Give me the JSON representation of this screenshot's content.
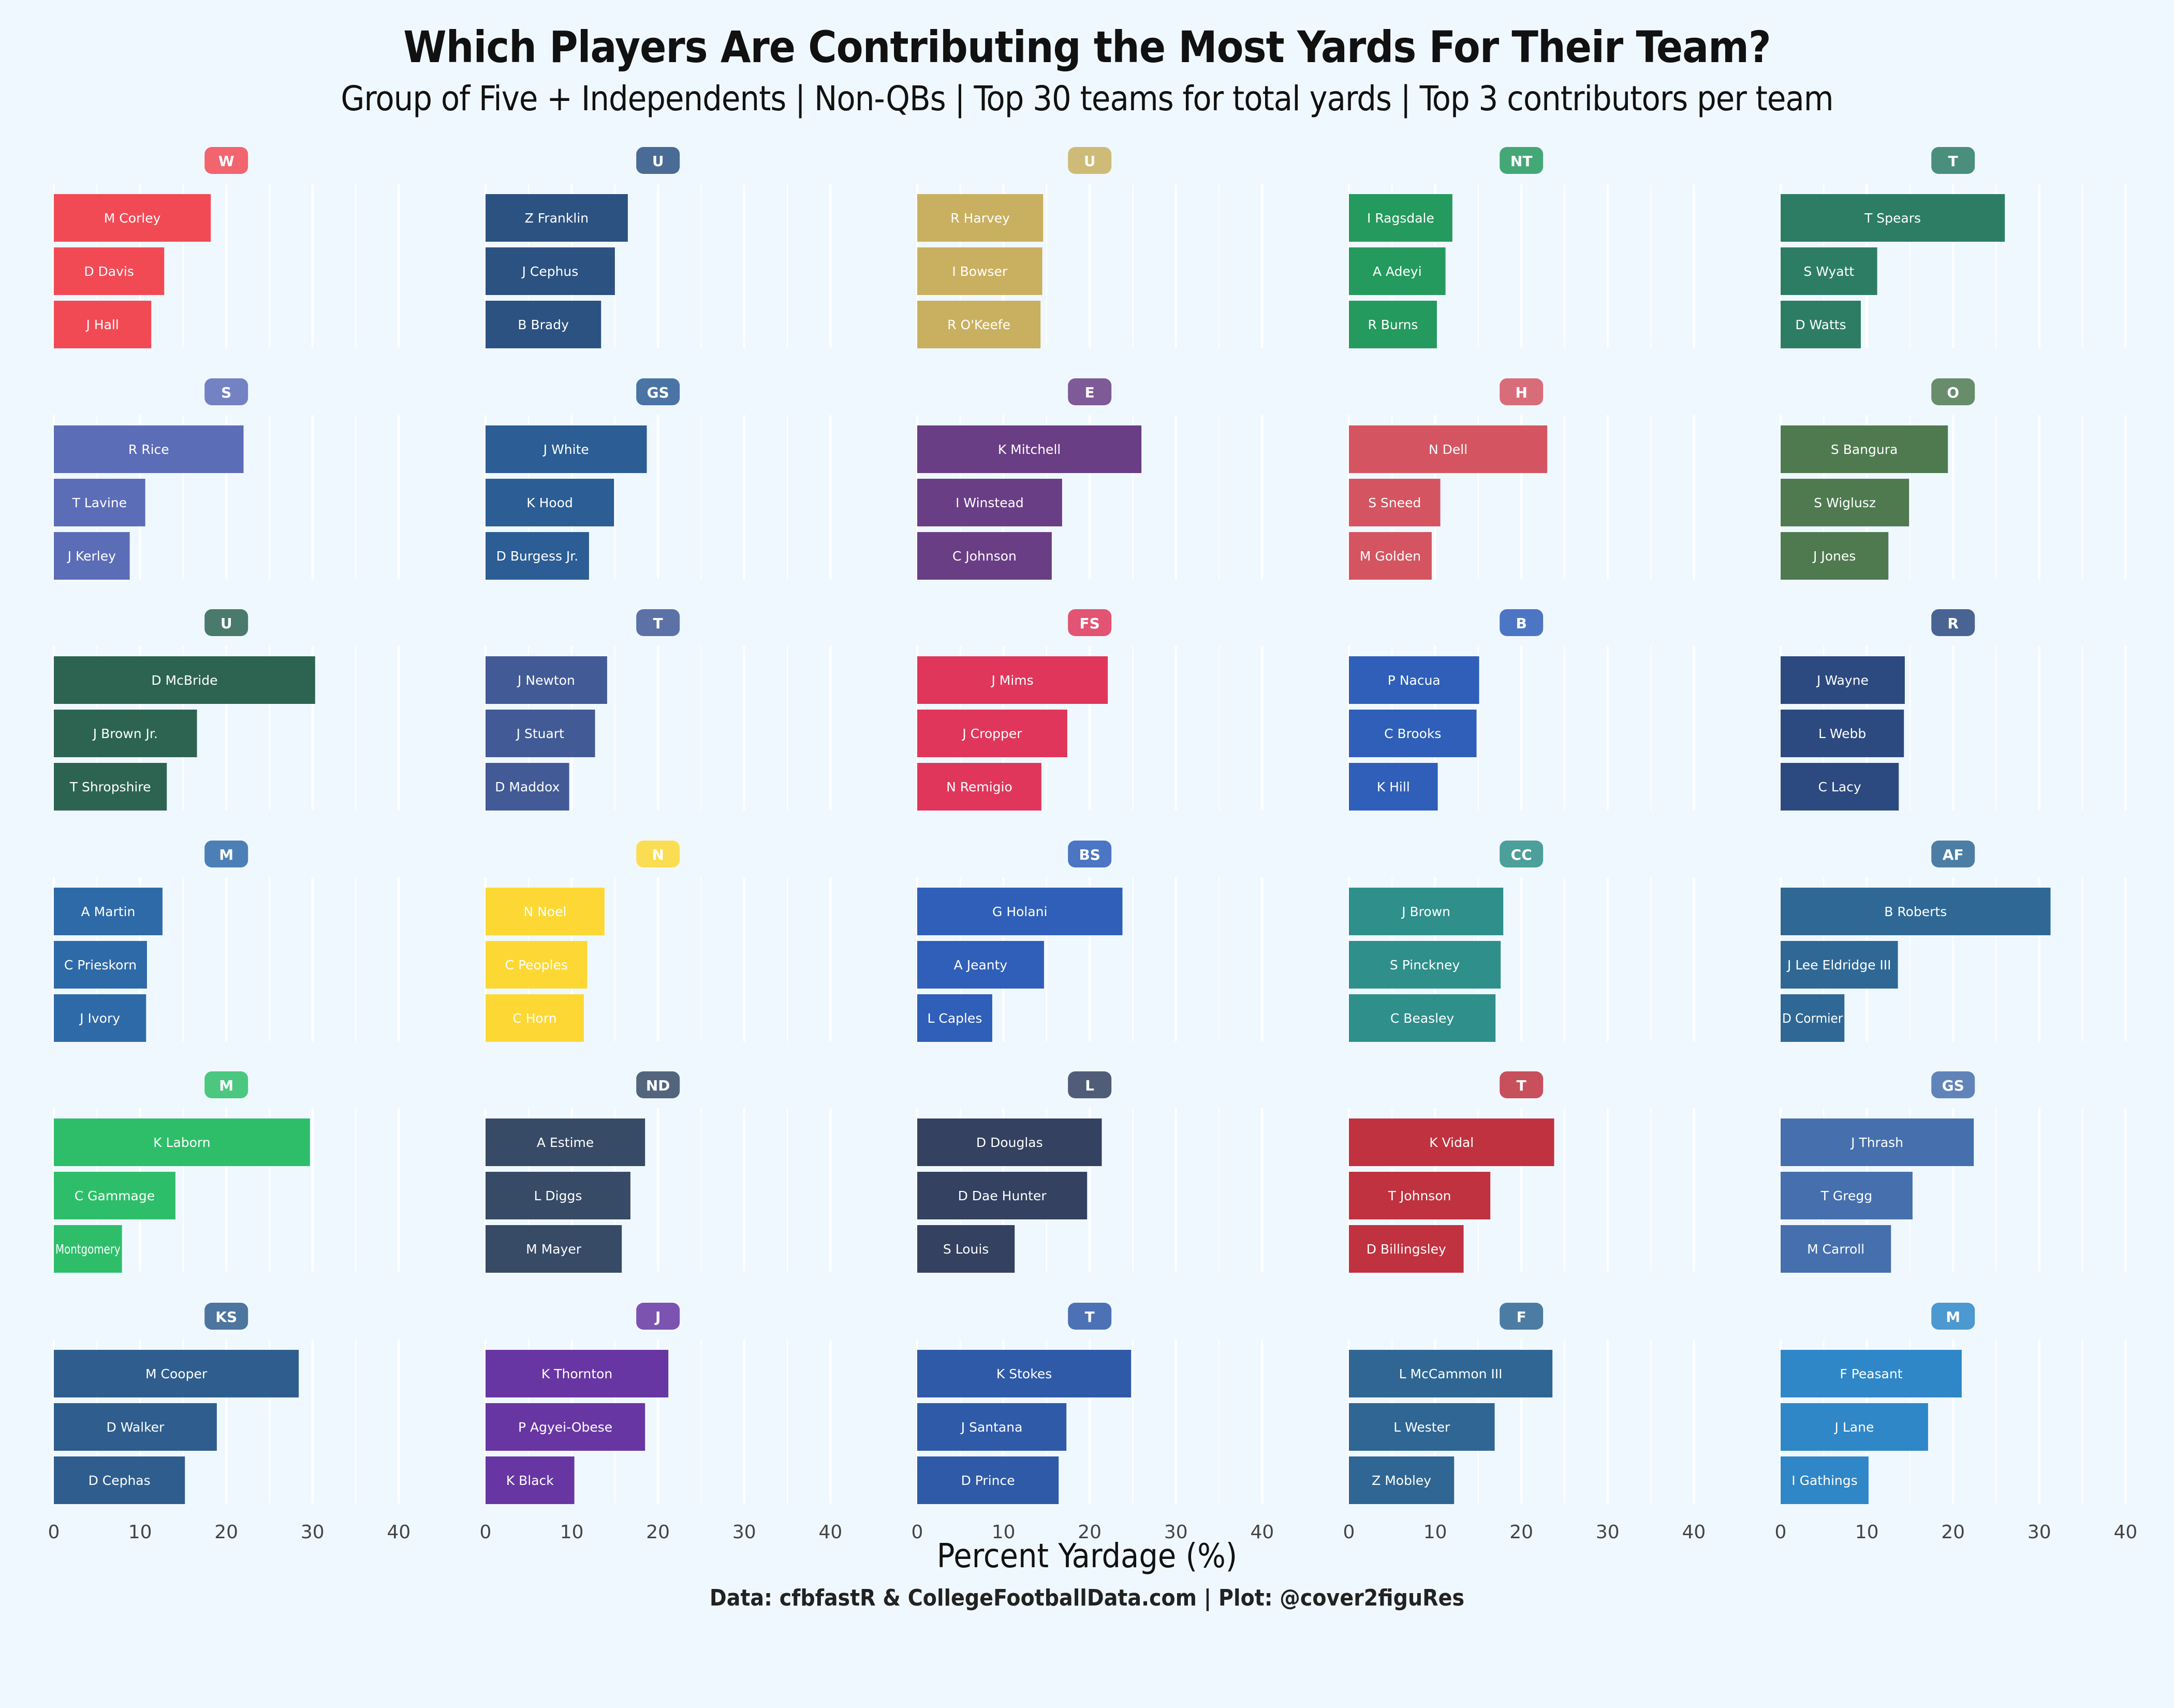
{
  "title": "Which Players Are Contributing the Most Yards For Their Team?",
  "subtitle": "Group of Five + Independents | Non-QBs | Top 30 teams for total yards | Top 3 contributors per team",
  "xlabel": "Percent Yardage (%)",
  "caption": "Data: cfbfastR & CollegeFootballData.com | Plot: @cover2figuRes",
  "chart_data": {
    "type": "bar",
    "orientation": "horizontal",
    "layout": "small multiples, 6 rows x 5 columns",
    "xlim": [
      0,
      40
    ],
    "xticks": [
      0,
      10,
      20,
      30,
      40
    ],
    "grid": true,
    "teams": [
      {
        "logo": "WKU",
        "logo_icon": "wku-logo-icon",
        "color": "#f24a55",
        "players": [
          "M Corley",
          "D Davis",
          "J Hall"
        ],
        "values": [
          18.2,
          12.8,
          11.3
        ]
      },
      {
        "logo": "UTSA",
        "logo_icon": "utsa-logo-icon",
        "color": "#2c5282",
        "players": [
          "Z Franklin",
          "J Cephus",
          "B Brady"
        ],
        "values": [
          16.5,
          15.0,
          13.4
        ]
      },
      {
        "logo": "UCF",
        "logo_icon": "ucf-logo-icon",
        "color": "#c9b060",
        "players": [
          "R Harvey",
          "I Bowser",
          "R O'Keefe"
        ],
        "values": [
          14.6,
          14.5,
          14.3
        ]
      },
      {
        "logo": "North Texas",
        "logo_icon": "north-texas-logo-icon",
        "color": "#259a5e",
        "players": [
          "I Ragsdale",
          "A Adeyi",
          "R Burns"
        ],
        "values": [
          12.0,
          11.2,
          10.2
        ]
      },
      {
        "logo": "Tulane",
        "logo_icon": "tulane-logo-icon",
        "color": "#2d7d65",
        "players": [
          "T Spears",
          "S Wyatt",
          "D Watts"
        ],
        "values": [
          26.0,
          11.2,
          9.3
        ]
      },
      {
        "logo": "SMU",
        "logo_icon": "smu-logo-icon",
        "color": "#5c6db8",
        "players": [
          "R Rice",
          "T Lavine",
          "J Kerley"
        ],
        "values": [
          22.0,
          10.6,
          8.8
        ]
      },
      {
        "logo": "Georgia Southern",
        "logo_icon": "georgia-southern-logo-icon",
        "color": "#2c5d94",
        "players": [
          "J White",
          "K Hood",
          "D Burgess Jr."
        ],
        "values": [
          18.7,
          14.9,
          12.0
        ]
      },
      {
        "logo": "ECU",
        "logo_icon": "ecu-logo-icon",
        "color": "#6a3e85",
        "players": [
          "K Mitchell",
          "I Winstead",
          "C Johnson"
        ],
        "values": [
          26.0,
          16.8,
          15.6
        ]
      },
      {
        "logo": "Houston",
        "logo_icon": "houston-logo-icon",
        "color": "#d45561",
        "players": [
          "N Dell",
          "S Sneed",
          "M Golden"
        ],
        "values": [
          23.0,
          10.6,
          9.6
        ]
      },
      {
        "logo": "Ohio",
        "logo_icon": "ohio-logo-icon",
        "color": "#4f7a50",
        "players": [
          "S Bangura",
          "S Wiglusz",
          "J Jones"
        ],
        "values": [
          19.4,
          14.9,
          12.5
        ]
      },
      {
        "logo": "UAB",
        "logo_icon": "uab-logo-icon",
        "color": "#2d6451",
        "players": [
          "D McBride",
          "J Brown Jr.",
          "T Shropshire"
        ],
        "values": [
          30.3,
          16.6,
          13.1
        ]
      },
      {
        "logo": "Toledo",
        "logo_icon": "toledo-logo-icon",
        "color": "#425b96",
        "players": [
          "J Newton",
          "J Stuart",
          "D Maddox"
        ],
        "values": [
          14.1,
          12.7,
          9.7
        ]
      },
      {
        "logo": "Fresno State",
        "logo_icon": "fresno-state-logo-icon",
        "color": "#e0365b",
        "players": [
          "J Mims",
          "J Cropper",
          "N Remigio"
        ],
        "values": [
          22.1,
          17.4,
          14.4
        ]
      },
      {
        "logo": "BYU",
        "logo_icon": "byu-logo-icon",
        "color": "#2f5fb8",
        "players": [
          "P Nacua",
          "C Brooks",
          "K Hill"
        ],
        "values": [
          15.1,
          14.8,
          10.3
        ]
      },
      {
        "logo": "Rice",
        "logo_icon": "rice-logo-icon",
        "color": "#2c4a80",
        "players": [
          "J Wayne",
          "L Webb",
          "C Lacy"
        ],
        "values": [
          14.4,
          14.3,
          13.7
        ]
      },
      {
        "logo": "Memphis",
        "logo_icon": "memphis-logo-icon",
        "color": "#2f6aa8",
        "players": [
          "A Martin",
          "C Prieskorn",
          "J Ivory"
        ],
        "values": [
          12.6,
          10.8,
          10.7
        ]
      },
      {
        "logo": "NCAA",
        "logo_icon": "ncaa-logo-icon",
        "color": "#fdd835",
        "players": [
          "N Noel",
          "C Peoples",
          "C Horn"
        ],
        "values": [
          13.8,
          11.8,
          11.4
        ]
      },
      {
        "logo": "Boise State",
        "logo_icon": "boise-state-logo-icon",
        "color": "#2f5fb8",
        "players": [
          "G Holani",
          "A Jeanty",
          "L Caples"
        ],
        "values": [
          23.8,
          14.7,
          8.7
        ]
      },
      {
        "logo": "Coastal Carolina",
        "logo_icon": "coastal-carolina-logo-icon",
        "color": "#2f8f8a",
        "players": [
          "J Brown",
          "S Pinckney",
          "C Beasley"
        ],
        "values": [
          17.9,
          17.6,
          17.0
        ]
      },
      {
        "logo": "Air Force",
        "logo_icon": "air-force-logo-icon",
        "color": "#2f6895",
        "players": [
          "B Roberts",
          "J Lee Eldridge III",
          "D Cormier"
        ],
        "values": [
          31.3,
          13.6,
          7.4
        ]
      },
      {
        "logo": "Marshall",
        "logo_icon": "marshall-logo-icon",
        "color": "#2ebe6a",
        "players": [
          "K Laborn",
          "C Gammage",
          "Montgomery"
        ],
        "values": [
          29.7,
          14.1,
          7.9
        ]
      },
      {
        "logo": "Notre Dame",
        "logo_icon": "notre-dame-logo-icon",
        "color": "#374a66",
        "players": [
          "A Estime",
          "L Diggs",
          "M Mayer"
        ],
        "values": [
          18.5,
          16.8,
          15.8
        ]
      },
      {
        "logo": "Liberty",
        "logo_icon": "liberty-logo-icon",
        "color": "#344160",
        "players": [
          "D Douglas",
          "D Dae Hunter",
          "S Louis"
        ],
        "values": [
          21.4,
          19.7,
          11.3
        ]
      },
      {
        "logo": "Troy",
        "logo_icon": "troy-logo-icon",
        "color": "#c0323f",
        "players": [
          "K Vidal",
          "T Johnson",
          "D Billingsley"
        ],
        "values": [
          23.8,
          16.4,
          13.3
        ]
      },
      {
        "logo": "Georgia State",
        "logo_icon": "georgia-state-logo-icon",
        "color": "#4670ad",
        "players": [
          "J Thrash",
          "T Gregg",
          "M Carroll"
        ],
        "values": [
          22.4,
          15.3,
          12.8
        ]
      },
      {
        "logo": "Kent State",
        "logo_icon": "kent-state-logo-icon",
        "color": "#2f5e8e",
        "players": [
          "M Cooper",
          "D Walker",
          "D Cephas"
        ],
        "values": [
          28.4,
          18.9,
          15.2
        ]
      },
      {
        "logo": "JMU",
        "logo_icon": "jmu-logo-icon",
        "color": "#6836a3",
        "players": [
          "K Thornton",
          "P Agyei-Obese",
          "K Black"
        ],
        "values": [
          21.2,
          18.5,
          10.3
        ]
      },
      {
        "logo": "Tulsa",
        "logo_icon": "tulsa-logo-icon",
        "color": "#2f5aa8",
        "players": [
          "K Stokes",
          "J Santana",
          "D Prince"
        ],
        "values": [
          24.8,
          17.3,
          16.4
        ]
      },
      {
        "logo": "FAU",
        "logo_icon": "fau-logo-icon",
        "color": "#2f6693",
        "players": [
          "L McCammon III",
          "L Wester",
          "Z Mobley"
        ],
        "values": [
          23.6,
          16.9,
          12.2
        ]
      },
      {
        "logo": "MTSU",
        "logo_icon": "mtsu-logo-icon",
        "color": "#2f87c8",
        "players": [
          "F Peasant",
          "J Lane",
          "I Gathings"
        ],
        "values": [
          21.0,
          17.1,
          10.2
        ]
      }
    ]
  }
}
